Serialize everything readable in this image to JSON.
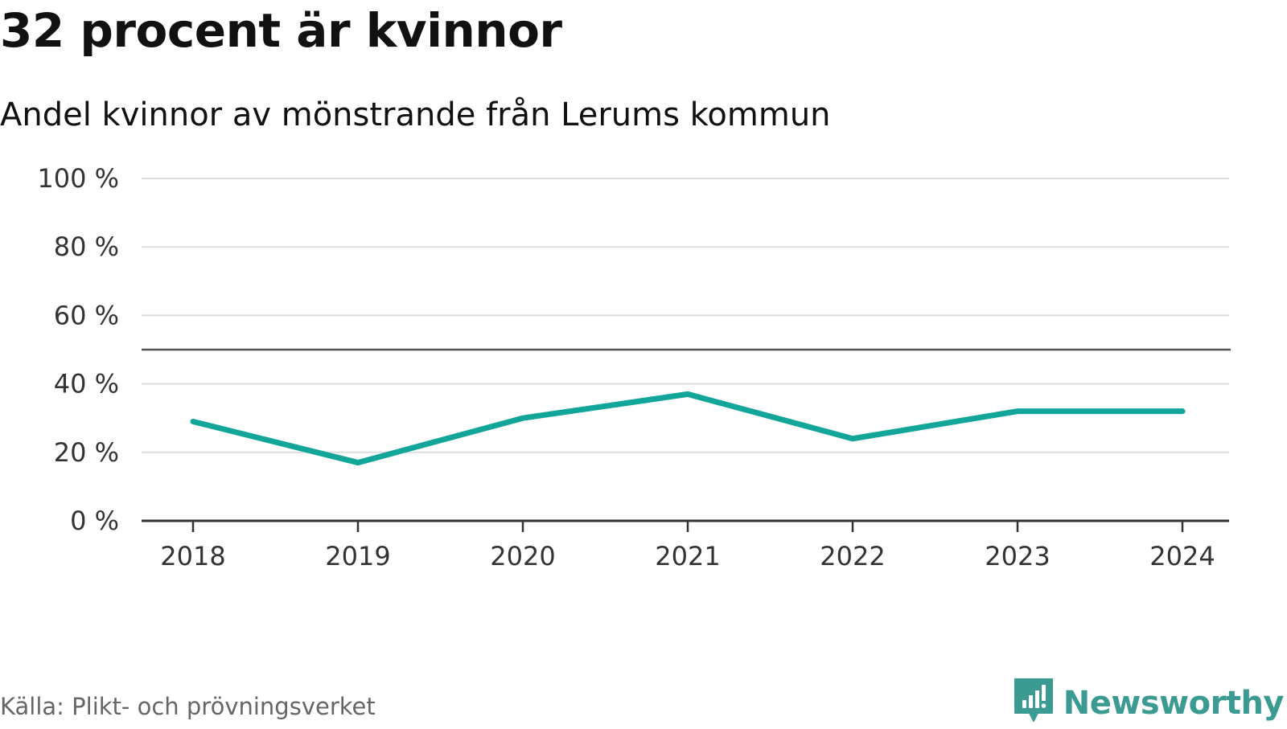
{
  "chart_data": {
    "type": "line",
    "title": "32 procent är kvinnor",
    "subtitle": "Andel kvinnor av mönstrande från Lerums kommun",
    "x": [
      "2018",
      "2019",
      "2020",
      "2021",
      "2022",
      "2023",
      "2024"
    ],
    "series": [
      {
        "name": "Andel kvinnor",
        "values": [
          29,
          17,
          30,
          37,
          24,
          32,
          32
        ],
        "color": "#12a59a"
      }
    ],
    "reference_line": 50,
    "ylim": [
      0,
      100
    ],
    "yticks": [
      0,
      20,
      40,
      60,
      80,
      100
    ],
    "ytick_labels": [
      "0 %",
      "20 %",
      "40 %",
      "60 %",
      "80 %",
      "100 %"
    ],
    "xlabel": "",
    "ylabel": "",
    "grid": true,
    "legend": "none"
  },
  "source": "Källa: Plikt- och prövningsverket",
  "brand": {
    "name": "Newsworthy",
    "color": "#3b9a91"
  },
  "colors": {
    "line": "#12a59a",
    "grid": "#dddddd",
    "axis": "#333333",
    "reference": "#555555"
  }
}
